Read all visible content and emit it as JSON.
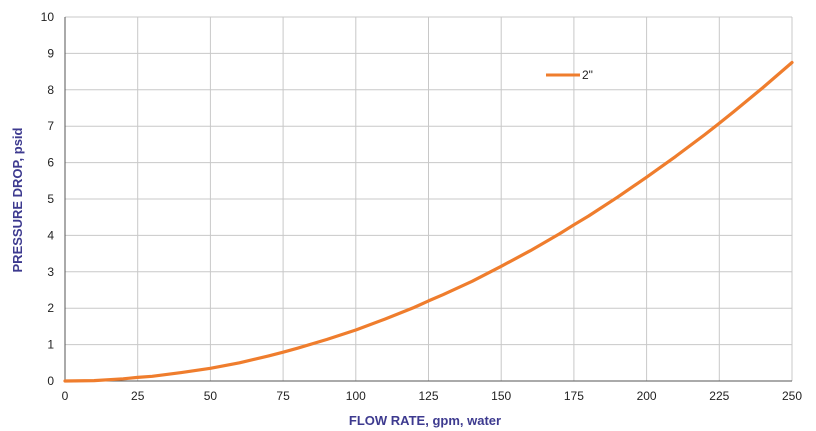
{
  "chart_data": {
    "type": "line",
    "title": "",
    "xlabel": "FLOW RATE, gpm, water",
    "ylabel": "PRESSURE DROP, psid",
    "xlim": [
      0,
      250
    ],
    "ylim": [
      0,
      10
    ],
    "x_ticks": [
      0,
      25,
      50,
      75,
      100,
      125,
      150,
      175,
      200,
      225,
      250
    ],
    "y_ticks": [
      0,
      1,
      2,
      3,
      4,
      5,
      6,
      7,
      8,
      9,
      10
    ],
    "grid": true,
    "legend_position": "top-right",
    "series": [
      {
        "name": "2\"",
        "color": "#ef7d2d",
        "x": [
          0,
          10,
          20,
          25,
          30,
          40,
          50,
          60,
          70,
          75,
          80,
          90,
          100,
          110,
          120,
          125,
          130,
          140,
          150,
          160,
          170,
          175,
          180,
          190,
          200,
          210,
          220,
          225,
          230,
          240,
          250
        ],
        "y": [
          0,
          0.01,
          0.06,
          0.1,
          0.13,
          0.23,
          0.35,
          0.5,
          0.69,
          0.79,
          0.9,
          1.14,
          1.4,
          1.7,
          2.02,
          2.2,
          2.37,
          2.74,
          3.15,
          3.58,
          4.04,
          4.29,
          4.53,
          5.05,
          5.6,
          6.17,
          6.77,
          7.08,
          7.4,
          8.06,
          8.75
        ]
      }
    ]
  }
}
